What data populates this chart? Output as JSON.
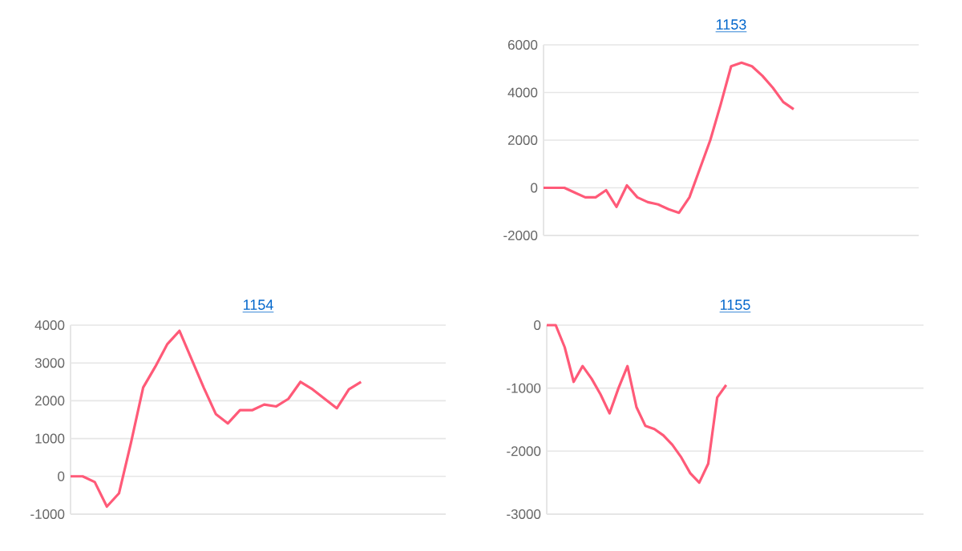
{
  "chart_data": [
    {
      "type": "line",
      "title": "1153",
      "categories": [
        null,
        null,
        null,
        null,
        null,
        null,
        null,
        null,
        null,
        null,
        null,
        null,
        null,
        null,
        null,
        null,
        null,
        null,
        null,
        null,
        null,
        null,
        null,
        null,
        null,
        null,
        null,
        null,
        null,
        null,
        null,
        null,
        null,
        null,
        null,
        null,
        null
      ],
      "values": [
        0,
        0,
        0,
        -200,
        -400,
        -400,
        -100,
        -800,
        100,
        -400,
        -600,
        -700,
        -900,
        -1050,
        -400,
        800,
        2000,
        3500,
        5100,
        5250,
        5100,
        4700,
        4200,
        3600,
        3300,
        null,
        null,
        null,
        null,
        null,
        null,
        null,
        null,
        null,
        null,
        null,
        null
      ],
      "color": "#ff5a78",
      "ylim": [
        -2000,
        6000
      ],
      "yticks": [
        -2000,
        0,
        2000,
        4000,
        6000
      ],
      "grid": "y",
      "tick_labels": "y"
    },
    {
      "type": "line",
      "title": "1154",
      "categories": [
        null,
        null,
        null,
        null,
        null,
        null,
        null,
        null,
        null,
        null,
        null,
        null,
        null,
        null,
        null,
        null,
        null,
        null,
        null,
        null,
        null,
        null,
        null,
        null,
        null,
        null,
        null,
        null,
        null,
        null,
        null,
        null
      ],
      "values": [
        0,
        0,
        -150,
        -800,
        -450,
        900,
        2350,
        2900,
        3500,
        3850,
        3100,
        2350,
        1650,
        1400,
        1750,
        1750,
        1900,
        1850,
        2050,
        2500,
        2300,
        2050,
        1800,
        2300,
        2500,
        null,
        null,
        null,
        null,
        null,
        null,
        null
      ],
      "color": "#ff5a78",
      "ylim": [
        -1000,
        4000
      ],
      "yticks": [
        -1000,
        0,
        1000,
        2000,
        3000,
        4000
      ],
      "grid": "y",
      "tick_labels": "y"
    },
    {
      "type": "line",
      "title": "1155",
      "categories": [
        null,
        null,
        null,
        null,
        null,
        null,
        null,
        null,
        null,
        null,
        null,
        null,
        null,
        null,
        null,
        null,
        null,
        null,
        null,
        null,
        null,
        null,
        null,
        null,
        null,
        null,
        null,
        null,
        null,
        null,
        null,
        null,
        null,
        null,
        null,
        null,
        null,
        null,
        null,
        null,
        null,
        null,
        null
      ],
      "values": [
        0,
        0,
        -350,
        -900,
        -650,
        -850,
        -1100,
        -1400,
        -1000,
        -650,
        -1300,
        -1600,
        -1650,
        -1750,
        -1900,
        -2100,
        -2350,
        -2500,
        -2200,
        -1150,
        -950,
        null,
        null,
        null,
        null,
        null,
        null,
        null,
        null,
        null,
        null,
        null,
        null,
        null,
        null,
        null,
        null,
        null,
        null,
        null,
        null,
        null,
        null
      ],
      "color": "#ff5a78",
      "ylim": [
        -3000,
        0
      ],
      "yticks": [
        -3000,
        -2000,
        -1000,
        0
      ],
      "grid": "y",
      "tick_labels": "y"
    }
  ]
}
